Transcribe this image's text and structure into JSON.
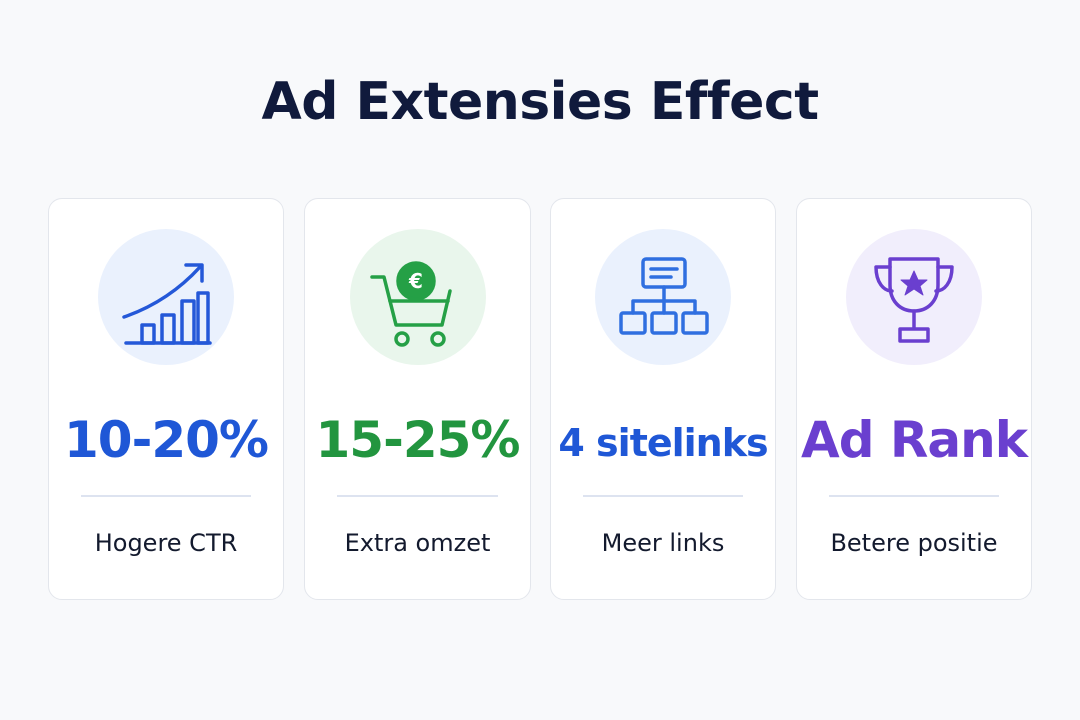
{
  "header": {
    "title": "Ad Extensies Effect"
  },
  "cards": [
    {
      "stat": "10-20%",
      "label": "Hogere CTR"
    },
    {
      "stat": "15-25%",
      "label": "Extra omzet"
    },
    {
      "stat": "4 sitelinks",
      "label": "Meer links"
    },
    {
      "stat": "Ad Rank",
      "label": "Betere positie"
    }
  ]
}
